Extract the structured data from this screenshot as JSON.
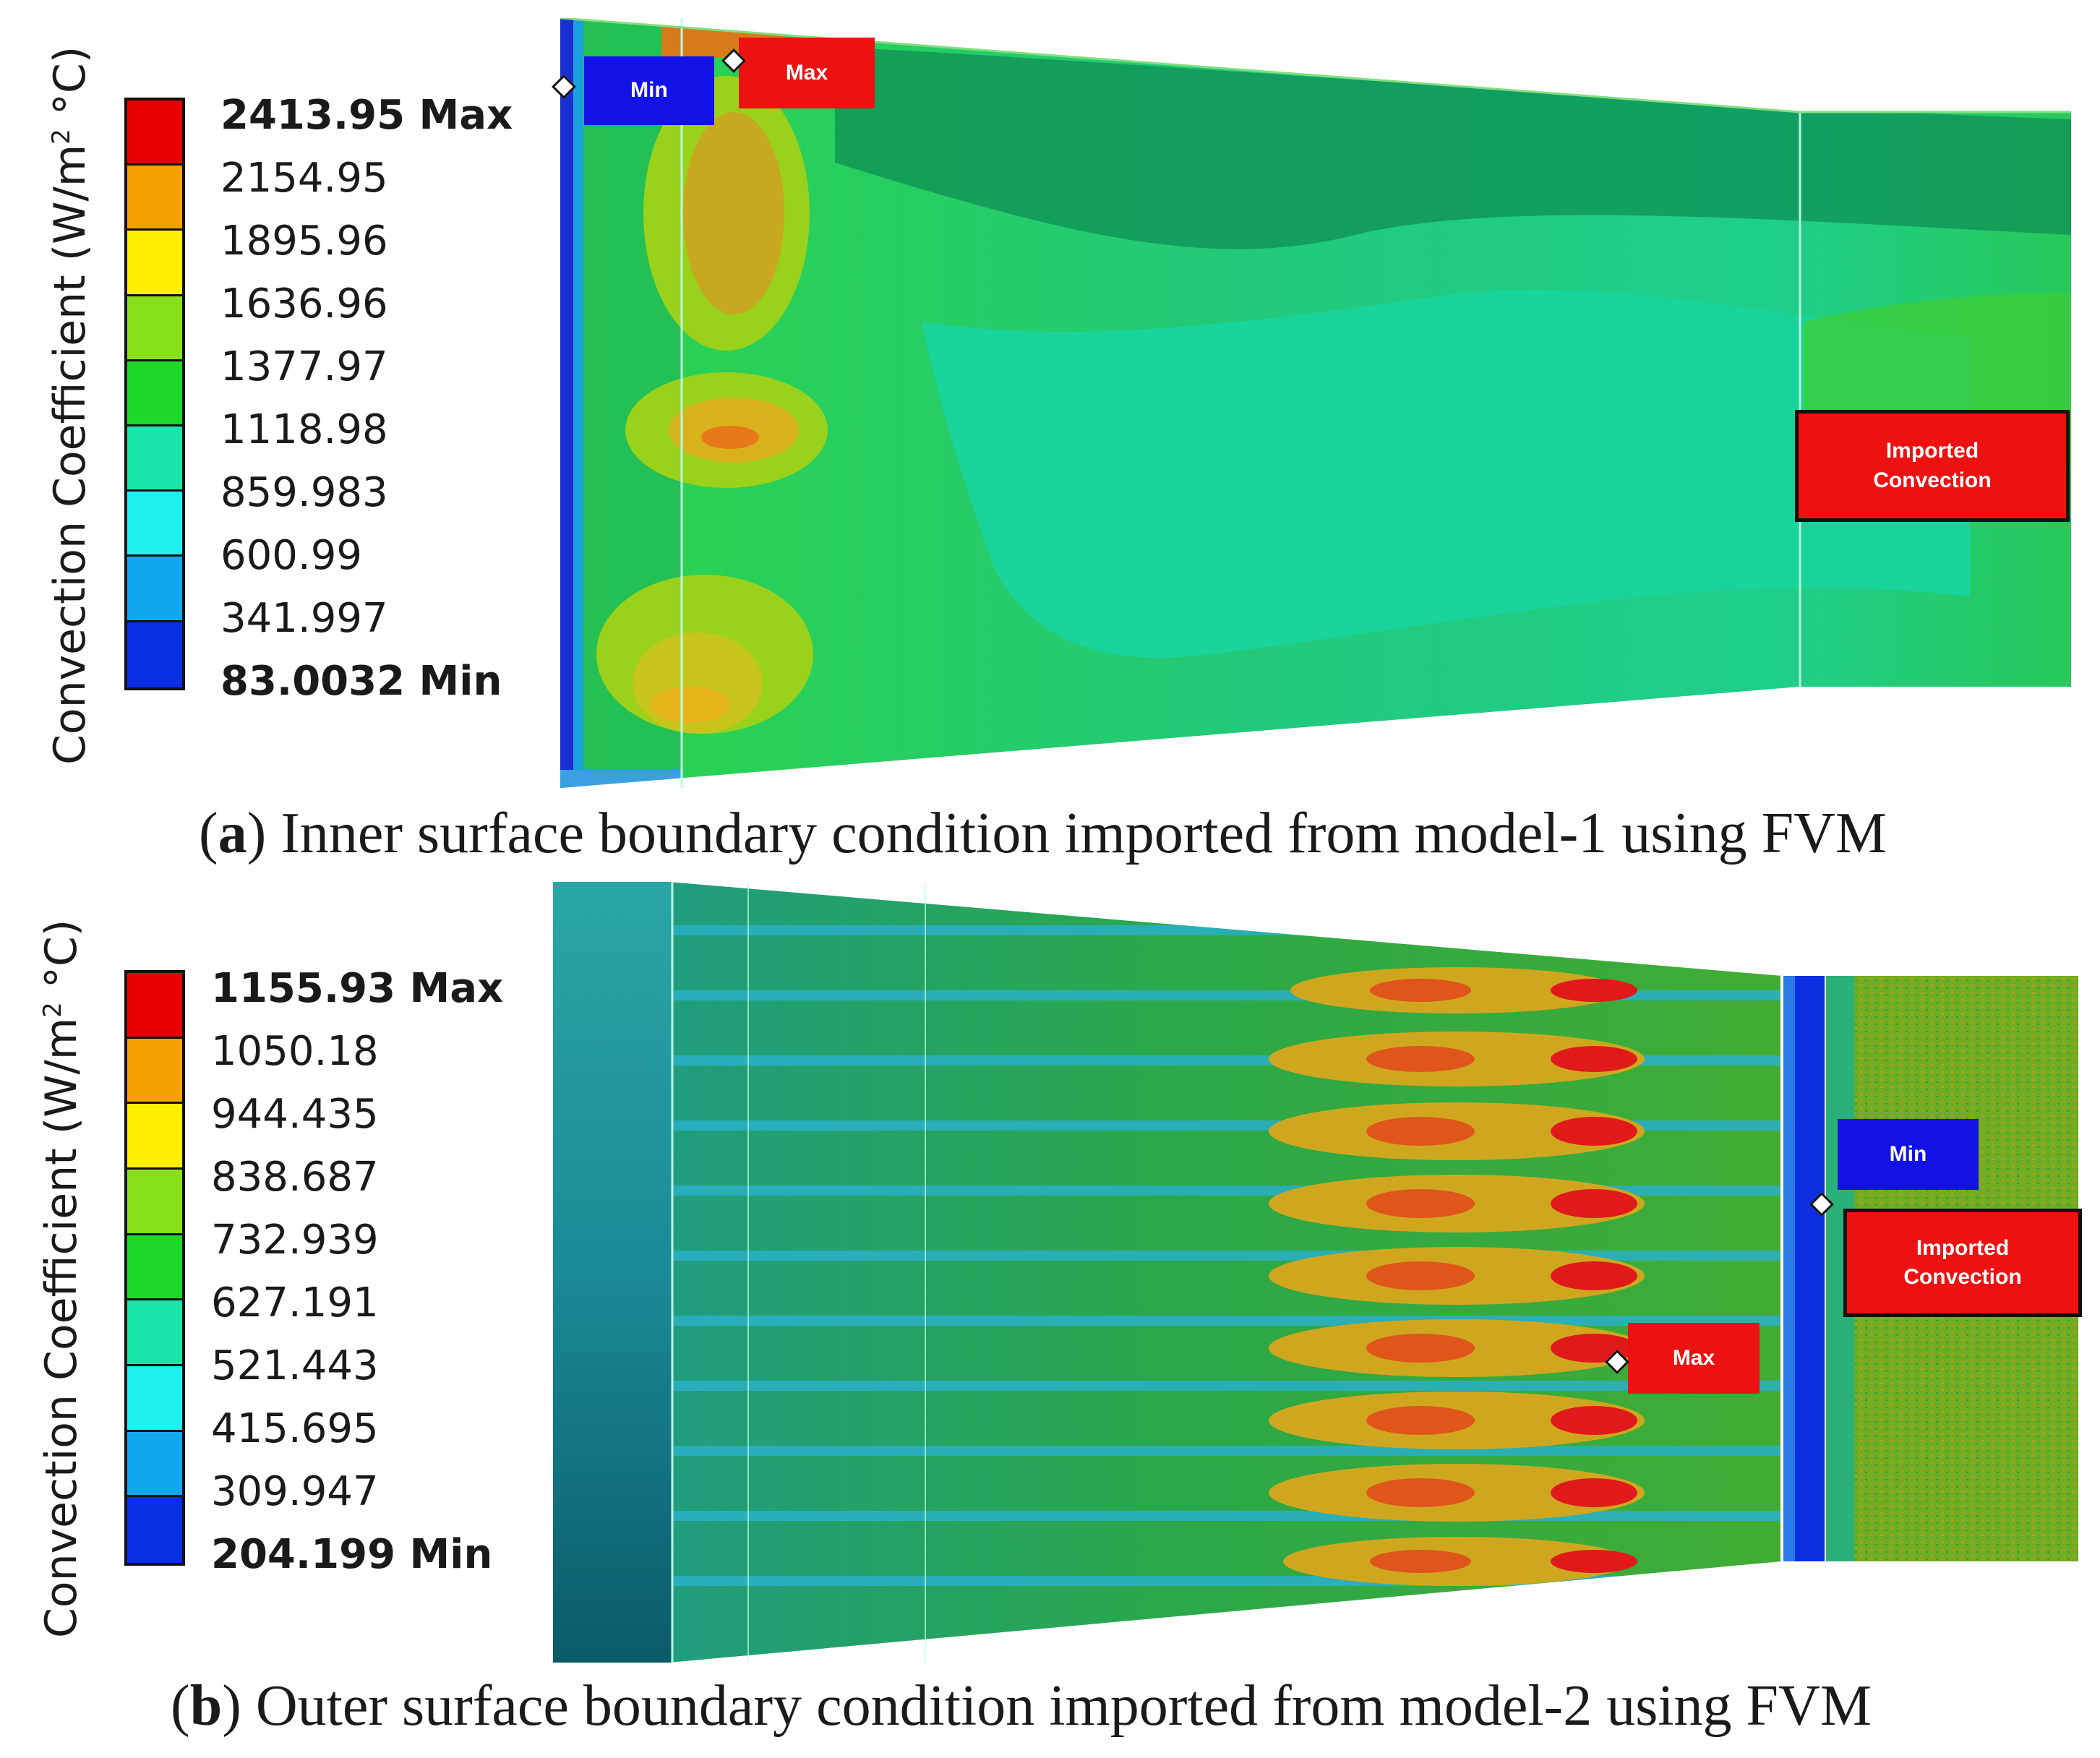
{
  "panel_a": {
    "axis_title": "Convection Coefficient (W/m",
    "axis_title_sup": "2",
    "axis_title_end": " °C)",
    "legend": [
      "2413.95 Max",
      "2154.95",
      "1895.96",
      "1636.96",
      "1377.97",
      "1118.98",
      "859.983",
      "600.99",
      "341.997",
      "83.0032 Min"
    ],
    "colors": [
      "#e80000",
      "#f5a000",
      "#ffee00",
      "#88e01a",
      "#1ed82a",
      "#18e6a8",
      "#1ef0f0",
      "#12a8f0",
      "#0a2ee6"
    ],
    "tags": {
      "min": "Min",
      "max": "Max",
      "imported_1": "Imported",
      "imported_2": "Convection"
    },
    "caption_letter": "a",
    "caption_text": " Inner surface boundary condition imported from model-1 using FVM"
  },
  "panel_b": {
    "axis_title": "Convection Coefficient (W/m",
    "axis_title_sup": "2",
    "axis_title_end": " °C)",
    "legend": [
      "1155.93 Max",
      "1050.18",
      "944.435",
      "838.687",
      "732.939",
      "627.191",
      "521.443",
      "415.695",
      "309.947",
      "204.199 Min"
    ],
    "colors": [
      "#e80000",
      "#f5a000",
      "#ffee00",
      "#88e01a",
      "#1ed82a",
      "#18e6a8",
      "#1ef0f0",
      "#12a8f0",
      "#0a2ee6"
    ],
    "tags": {
      "min": "Min",
      "max": "Max",
      "imported_1": "Imported",
      "imported_2": "Convection"
    },
    "caption_letter": "b",
    "caption_text": " Outer surface boundary condition imported from model-2 using FVM"
  }
}
